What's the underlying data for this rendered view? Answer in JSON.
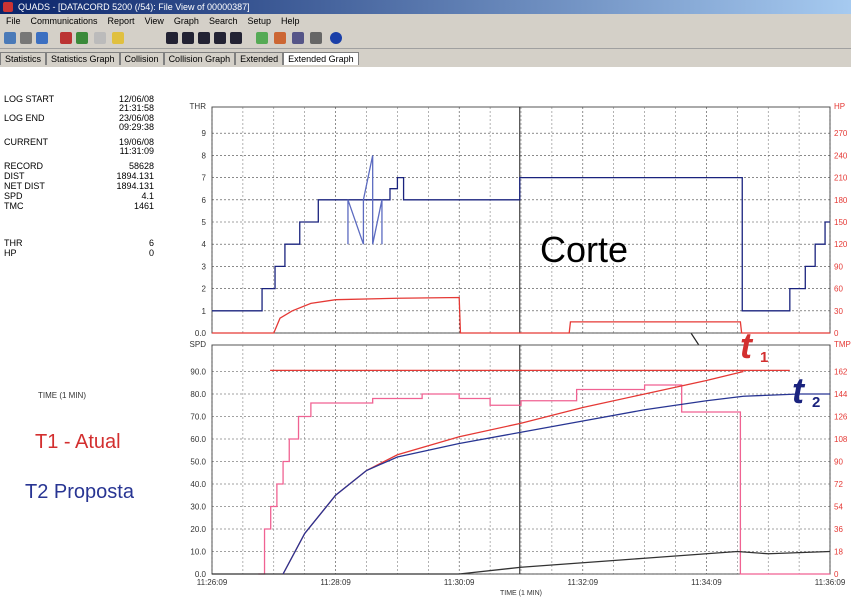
{
  "window": {
    "title": "QUADS - [DATACORD 5200 (/54): File View of 00000387]"
  },
  "menu": [
    "File",
    "Communications",
    "Report",
    "View",
    "Graph",
    "Search",
    "Setup",
    "Help"
  ],
  "tabs": [
    "Statistics",
    "Statistics Graph",
    "Collision",
    "Collision Graph",
    "Extended",
    "Extended Graph"
  ],
  "active_tab": 5,
  "stats": [
    {
      "label": "LOG START",
      "value": [
        "12/06/08",
        "21:31:58"
      ]
    },
    {
      "label": "LOG END",
      "value": [
        "23/06/08",
        "09:29:38"
      ]
    },
    {
      "label": "CURRENT",
      "value": [
        "19/06/08",
        "11:31:09"
      ]
    },
    {
      "label": "RECORD",
      "value": [
        "58628"
      ]
    },
    {
      "label": "DIST",
      "value": [
        "1894.131"
      ]
    },
    {
      "label": "NET DIST",
      "value": [
        "1894.131"
      ]
    },
    {
      "label": "SPD",
      "value": [
        "4.1"
      ]
    },
    {
      "label": "TMC",
      "value": [
        "1461"
      ]
    },
    {
      "label": "THR",
      "value": [
        "6"
      ]
    },
    {
      "label": "HP",
      "value": [
        "0"
      ]
    }
  ],
  "annotations": {
    "corte": "Corte",
    "t1": "t",
    "t1_sub": "1",
    "t2": "t",
    "t2_sub": "2",
    "legend1": "T1 - Atual",
    "legend2": "T2 Proposta",
    "time_left": "TIME (1 MIN)"
  },
  "chart_data": [
    {
      "type": "line",
      "ylabel": "THR",
      "y2label": "HP",
      "xlim": [
        0,
        10
      ],
      "ylim": [
        0,
        10
      ],
      "yticks": [
        9,
        8,
        7,
        6,
        5,
        4,
        3,
        2,
        1,
        {
          "value": 0,
          "label": "0.0"
        }
      ],
      "y2lim": [
        0,
        300
      ],
      "y2ticks": [
        270,
        240,
        210,
        180,
        150,
        120,
        90,
        60,
        30,
        0
      ],
      "cursor": 4.98,
      "grid": true,
      "series": [
        {
          "color": "#1a237e",
          "step": true,
          "x": [
            0,
            0.81,
            1.02,
            1.18,
            1.42,
            1.72,
            2.88,
            3.0,
            3.1,
            4.98,
            8.58,
            9.35,
            9.6,
            9.76,
            9.92,
            10
          ],
          "values": [
            1,
            2,
            3,
            4,
            5,
            6,
            6.5,
            7,
            6,
            7,
            1,
            2,
            3,
            4,
            5,
            5
          ]
        },
        {
          "color": "#5c6bc0",
          "x": [
            2.2,
            2.2,
            2.45,
            2.45,
            2.6,
            2.6,
            2.75,
            2.75
          ],
          "values": [
            4,
            6,
            4,
            6,
            8,
            4,
            6,
            4
          ]
        },
        {
          "color": "#e53935",
          "axis": "y2",
          "x": [
            0,
            1.0,
            1.1,
            1.3,
            1.6,
            2.0,
            3.0,
            4.0,
            4.02,
            5.78,
            5.8,
            8.55,
            8.57,
            10
          ],
          "values": [
            0,
            0,
            20,
            30,
            40,
            45,
            47,
            48,
            0,
            0,
            15,
            15,
            0,
            0
          ]
        }
      ]
    },
    {
      "type": "line",
      "ylabel": "SPD",
      "y2label": "TMP",
      "xlabel": "TIME (1 MIN)",
      "xlim": [
        0,
        10
      ],
      "xticks": [
        {
          "value": 0,
          "label": "11:26:09"
        },
        {
          "value": 2,
          "label": "11:28:09"
        },
        {
          "value": 4,
          "label": "11:30:09"
        },
        {
          "value": 6,
          "label": "11:32:09"
        },
        {
          "value": 8,
          "label": "11:34:09"
        },
        {
          "value": 10,
          "label": "11:36:09"
        }
      ],
      "ylim": [
        0,
        100
      ],
      "yticks": [
        {
          "value": 90,
          "label": "90.0"
        },
        {
          "value": 80,
          "label": "80.0"
        },
        {
          "value": 70,
          "label": "70.0"
        },
        {
          "value": 60,
          "label": "60.0"
        },
        {
          "value": 50,
          "label": "50.0"
        },
        {
          "value": 40,
          "label": "40.0"
        },
        {
          "value": 30,
          "label": "30.0"
        },
        {
          "value": 20,
          "label": "20.0"
        },
        {
          "value": 10,
          "label": "10.0"
        },
        {
          "value": 0,
          "label": "0.0"
        }
      ],
      "y2lim": [
        0,
        180
      ],
      "y2ticks": [
        162,
        144,
        126,
        108,
        90,
        72,
        54,
        36,
        18,
        0
      ],
      "cursor": 4.98,
      "grid": true,
      "series": [
        {
          "color": "#e53935",
          "x": [
            0.94,
            9.35
          ],
          "values": [
            90.5,
            90.5
          ]
        },
        {
          "color": "#f06292",
          "step": true,
          "x": [
            0.75,
            0.85,
            0.95,
            1.05,
            1.15,
            1.25,
            1.4,
            1.6,
            2.0,
            2.6,
            3.4,
            4.0,
            4.5,
            5.0,
            5.9,
            7.0,
            7.6,
            8.5,
            8.55,
            10
          ],
          "values": [
            0,
            20,
            30,
            40,
            50,
            60,
            70,
            76,
            76,
            78,
            80,
            78,
            75,
            77,
            82,
            84,
            72,
            72,
            0,
            0
          ]
        },
        {
          "color": "#333333",
          "x": [
            0,
            4.0,
            5.0,
            6.0,
            7.0,
            8.0,
            8.5,
            9.0,
            10
          ],
          "values": [
            0,
            0,
            3,
            5,
            7,
            9,
            10,
            9,
            10
          ]
        },
        {
          "color": "#e53935",
          "x": [
            1.15,
            1.5,
            2.0,
            2.5,
            3.0,
            4.0,
            5.0,
            6.0,
            7.0,
            8.0,
            8.6
          ],
          "values": [
            0,
            18,
            35,
            46,
            53,
            61,
            67,
            74,
            80,
            86,
            90
          ]
        },
        {
          "color": "#283593",
          "x": [
            1.15,
            1.5,
            2.0,
            2.5,
            3.0,
            4.0,
            5.0,
            6.0,
            7.0,
            8.0,
            8.6,
            9.5,
            10
          ],
          "values": [
            0,
            18,
            35,
            46,
            52,
            58,
            63,
            68,
            73,
            77,
            79,
            80,
            80
          ]
        }
      ]
    }
  ]
}
